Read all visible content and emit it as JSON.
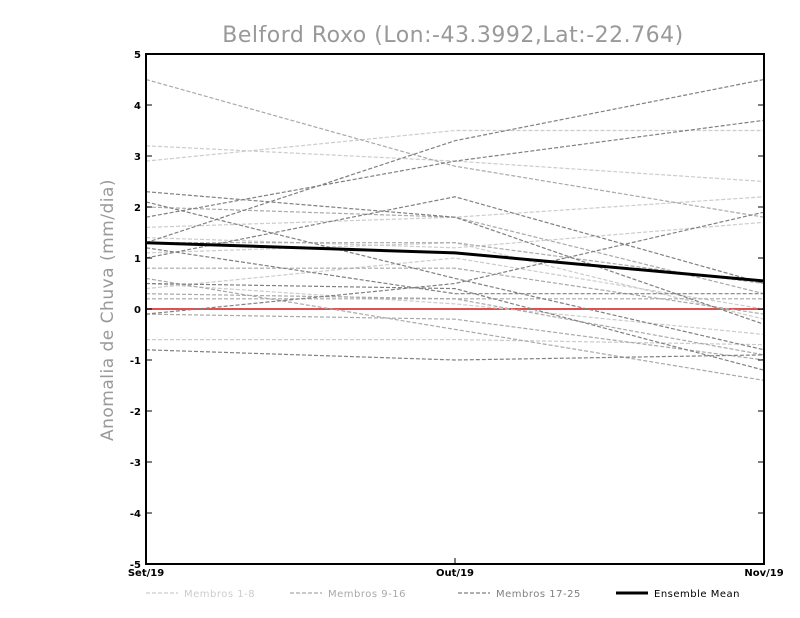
{
  "chart_data": {
    "type": "line",
    "title": "Belford Roxo (Lon:-43.3992,Lat:-22.764)",
    "xlabel": "",
    "ylabel": "Anomalia de Chuva (mm/dia)",
    "categories": [
      "Set/19",
      "Out/19",
      "Nov/19"
    ],
    "y_ticks": [
      "-5",
      "-4",
      "-3",
      "-2",
      "-1",
      "0",
      "1",
      "2",
      "3",
      "4",
      "5"
    ],
    "ylim": [
      -5,
      5
    ],
    "grid": false,
    "legend_position": "bottom",
    "zero_line_color": "#e05050",
    "groups": [
      {
        "name": "Membros 1-8",
        "color": "#cccccc",
        "style": "dashed"
      },
      {
        "name": "Membros 9-16",
        "color": "#a9a9a9",
        "style": "dashed"
      },
      {
        "name": "Membros 17-25",
        "color": "#808080",
        "style": "dashed"
      },
      {
        "name": "Ensemble Mean",
        "color": "#000000",
        "style": "solid"
      }
    ],
    "series": [
      {
        "group": 0,
        "values": [
          3.2,
          2.9,
          2.5
        ]
      },
      {
        "group": 0,
        "values": [
          2.9,
          3.5,
          3.5
        ]
      },
      {
        "group": 0,
        "values": [
          1.6,
          1.8,
          2.2
        ]
      },
      {
        "group": 0,
        "values": [
          1.4,
          1.2,
          1.7
        ]
      },
      {
        "group": 0,
        "values": [
          1.1,
          1.3,
          -0.2
        ]
      },
      {
        "group": 0,
        "values": [
          0.5,
          0.1,
          -0.5
        ]
      },
      {
        "group": 0,
        "values": [
          -0.6,
          -0.6,
          -0.7
        ]
      },
      {
        "group": 0,
        "values": [
          0.4,
          1.0,
          0.0
        ]
      },
      {
        "group": 1,
        "values": [
          4.5,
          2.8,
          1.8
        ]
      },
      {
        "group": 1,
        "values": [
          2.0,
          1.8,
          0.3
        ]
      },
      {
        "group": 1,
        "values": [
          1.3,
          1.3,
          0.5
        ]
      },
      {
        "group": 1,
        "values": [
          0.8,
          0.8,
          -0.1
        ]
      },
      {
        "group": 1,
        "values": [
          0.6,
          -0.4,
          -1.4
        ]
      },
      {
        "group": 1,
        "values": [
          0.3,
          0.2,
          -0.9
        ]
      },
      {
        "group": 1,
        "values": [
          0.2,
          0.2,
          0.2
        ]
      },
      {
        "group": 1,
        "values": [
          -0.1,
          -0.2,
          -1.0
        ]
      },
      {
        "group": 2,
        "values": [
          2.3,
          1.8,
          -0.3
        ]
      },
      {
        "group": 2,
        "values": [
          2.1,
          0.6,
          -0.8
        ]
      },
      {
        "group": 2,
        "values": [
          1.8,
          2.9,
          3.7
        ]
      },
      {
        "group": 2,
        "values": [
          1.3,
          3.3,
          4.5
        ]
      },
      {
        "group": 2,
        "values": [
          1.2,
          0.3,
          0.3
        ]
      },
      {
        "group": 2,
        "values": [
          0.5,
          0.4,
          -1.2
        ]
      },
      {
        "group": 2,
        "values": [
          -0.1,
          0.5,
          1.9
        ]
      },
      {
        "group": 2,
        "values": [
          -0.8,
          -1.0,
          -0.9
        ]
      },
      {
        "group": 2,
        "values": [
          1.0,
          2.2,
          0.5
        ]
      },
      {
        "group": 3,
        "values": [
          1.3,
          1.1,
          0.55
        ]
      }
    ]
  }
}
